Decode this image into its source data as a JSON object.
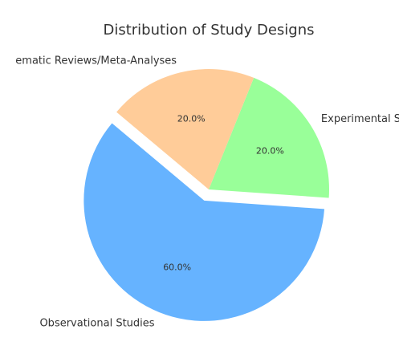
{
  "chart_data": {
    "type": "pie",
    "title": "Distribution of Study Designs",
    "categories": [
      "Observational Studies",
      "Experimental S",
      "ematic Reviews/Meta-Analyses"
    ],
    "values": [
      60,
      20,
      20
    ],
    "value_labels": [
      "60.0%",
      "20.0%",
      "20.0%"
    ],
    "colors": [
      "#66b3ff",
      "#99ff99",
      "#ffcc99"
    ]
  }
}
